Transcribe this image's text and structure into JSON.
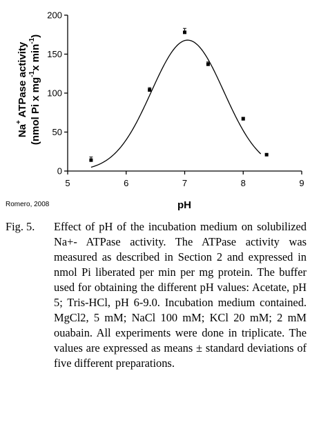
{
  "chart_data": {
    "type": "scatter",
    "title": "",
    "xlabel": "pH",
    "ylabel_main": "Na",
    "ylabel_sup": "+",
    "ylabel_rest": " ATPase activity",
    "ylabel_line2_a": "(nmol Pi x mg",
    "ylabel_line2_sup1": "-1",
    "ylabel_line2_b": "x min",
    "ylabel_line2_sup2": "-1",
    "ylabel_line2_c": ")",
    "xlim": [
      5,
      9
    ],
    "ylim": [
      0,
      200
    ],
    "x_ticks": [
      "5",
      "6",
      "7",
      "8",
      "9"
    ],
    "y_ticks": [
      "0",
      "50",
      "100",
      "150",
      "200"
    ],
    "grid": false,
    "series": [
      {
        "x": [
          5.4,
          6.4,
          7.0,
          7.4,
          8.0,
          8.4
        ],
        "y": [
          14,
          104,
          178,
          137,
          67,
          21
        ],
        "error": [
          4,
          3,
          5,
          3,
          2,
          1
        ]
      }
    ],
    "fit_curve": {
      "shape": "gaussian",
      "peak_x": 7.05,
      "peak_y": 168,
      "x_start": 5.4,
      "x_end": 8.3
    },
    "annotation": "Romero, 2008"
  },
  "caption": {
    "label": "Fig. 5.",
    "text": "Effect of pH of the incubation medium on solubilized Na+- ATPase activity. The ATPase activity was measured as de­scribed in Section 2 and expressed in nmol Pi liberated per min per mg pro­tein. The buffer used for obtaining the different pH values: Acetate, pH 5; Tris-HCl, pH 6-9.0. Incubation medium contained. MgCl2, 5 mM; NaCl 100 mM; KCl 20 mM; 2 mM ouabain. All experi­ments were done in triplicate. The val­ues are expressed as means ± standard deviations of five different preparations."
  }
}
